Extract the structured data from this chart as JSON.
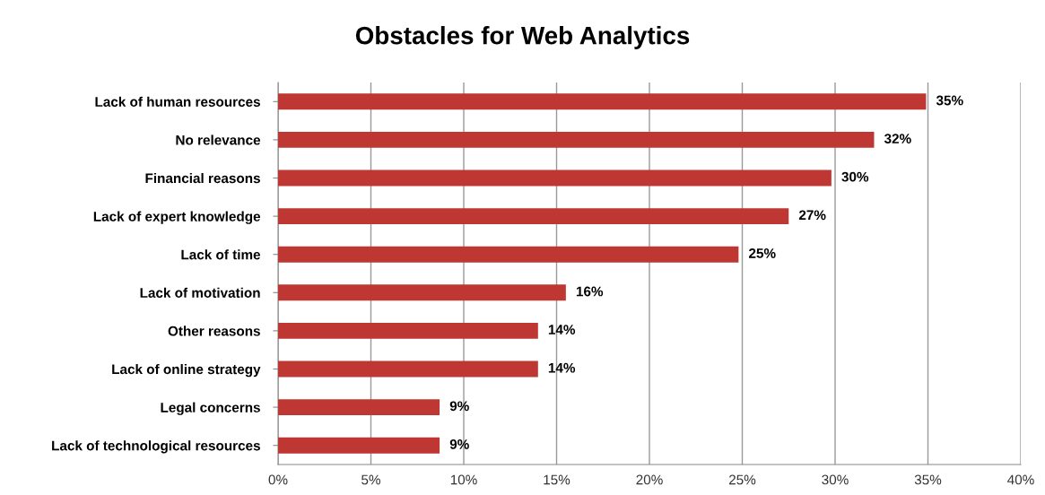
{
  "chart_data": {
    "type": "bar",
    "orientation": "horizontal",
    "title": "Obstacles for Web Analytics",
    "categories": [
      "Lack of human resources",
      "No relevance",
      "Financial reasons",
      "Lack of expert knowledge",
      "Lack of time",
      "Lack of motivation",
      "Other reasons",
      "Lack of online strategy",
      "Legal concerns",
      "Lack of technological resources"
    ],
    "values": [
      34.9,
      32.1,
      29.8,
      27.5,
      24.8,
      15.5,
      14.0,
      14.0,
      8.7,
      8.7
    ],
    "value_labels": [
      "35%",
      "32%",
      "30%",
      "27%",
      "25%",
      "16%",
      "14%",
      "14%",
      "9%",
      "9%"
    ],
    "color": "#be3733",
    "xlim": [
      0,
      40
    ],
    "xticks": [
      {
        "value": 0,
        "label": "0%"
      },
      {
        "value": 5,
        "label": "5%"
      },
      {
        "value": 10,
        "label": "10%"
      },
      {
        "value": 15,
        "label": "15%"
      },
      {
        "value": 20,
        "label": "20%"
      },
      {
        "value": 25,
        "label": "25%"
      },
      {
        "value": 30,
        "label": "30%"
      },
      {
        "value": 35,
        "label": "35%"
      },
      {
        "value": 40,
        "label": "40%"
      }
    ],
    "grid": "x"
  }
}
